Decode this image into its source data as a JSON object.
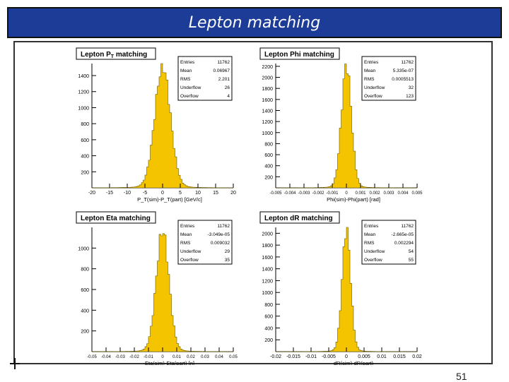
{
  "slide": {
    "title": "Lepton matching",
    "page_number": "51"
  },
  "colors": {
    "title_bg": "#1c3c98",
    "bar_fill": "#f5c400",
    "bar_stroke": "#6b5a00"
  },
  "chart_data": [
    {
      "type": "bar",
      "title": "Lepton P_T matching",
      "title_main": "Lepton P",
      "title_sub": "T",
      "title_tail": " matching",
      "xlabel": "P_T(sim)-P_T(part) [GeV/c]",
      "xticks": [
        "-20",
        "-15",
        "-10",
        "-5",
        "0",
        "5",
        "10",
        "15",
        "20"
      ],
      "yticks": [
        "200",
        "400",
        "600",
        "800",
        "1000",
        "1200",
        "1400"
      ],
      "xlim": [
        -20,
        20
      ],
      "ylim": [
        0,
        1550
      ],
      "mean": 0,
      "sigma": 2.2,
      "peak": 1520,
      "stats": [
        [
          "Entries",
          "11762"
        ],
        [
          "Mean",
          "0.06967"
        ],
        [
          "RMS",
          "2.201"
        ],
        [
          "Underflow",
          "26"
        ],
        [
          "Overflow",
          "4"
        ]
      ]
    },
    {
      "type": "bar",
      "title": "Lepton Phi matching",
      "xlabel": "Phi(sim)-Phi(part) [rad]",
      "xticks": [
        "-0.005",
        "-0.004",
        "-0.003",
        "-0.002",
        "-0.001",
        "0",
        "0.001",
        "0.002",
        "0.003",
        "0.004",
        "0.005"
      ],
      "xtick_labels_row": "-0.0050.0040.0030.0020.001 0 0.0010.0020.0030.0040.005",
      "yticks": [
        "200",
        "400",
        "600",
        "800",
        "1000",
        "1200",
        "1400",
        "1600",
        "1800",
        "2000",
        "2200"
      ],
      "xlim": [
        -0.005,
        0.005
      ],
      "ylim": [
        0,
        2250
      ],
      "mean": 0,
      "sigma": 0.00035,
      "peak": 2230,
      "stats": [
        [
          "Entries",
          "11762"
        ],
        [
          "Mean",
          "5.335e-07"
        ],
        [
          "RMS",
          "0.0005513"
        ],
        [
          "Underflow",
          "32"
        ],
        [
          "Overflow",
          "123"
        ]
      ]
    },
    {
      "type": "bar",
      "title": "Lepton Eta matching",
      "xlabel": "Eta(sim)-Eta(part) [η]",
      "xticks": [
        "-0.05",
        "-0.04",
        "-0.03",
        "-0.02",
        "-0.01",
        "0",
        "0.01",
        "0.02",
        "0.03",
        "0.04",
        "0.05"
      ],
      "yticks": [
        "200",
        "400",
        "600",
        "800",
        "1000"
      ],
      "xlim": [
        -0.05,
        0.05
      ],
      "ylim": [
        0,
        1200
      ],
      "mean": 0,
      "sigma": 0.0045,
      "peak": 1170,
      "stats": [
        [
          "Entries",
          "11762"
        ],
        [
          "Mean",
          "-3.049e-05"
        ],
        [
          "RMS",
          "0.009032"
        ],
        [
          "Underflow",
          "29"
        ],
        [
          "Overflow",
          "35"
        ]
      ]
    },
    {
      "type": "bar",
      "title": "Lepton dR matching",
      "xlabel": "dR(sim)-dR(part)",
      "xticks": [
        "-0.02",
        "-0.015",
        "-0.01",
        "-0.005",
        "0",
        "0.005",
        "0.01",
        "0.015",
        "0.02"
      ],
      "yticks": [
        "200",
        "400",
        "600",
        "800",
        "1000",
        "1200",
        "1400",
        "1600",
        "1800",
        "2000"
      ],
      "xlim": [
        -0.02,
        0.02
      ],
      "ylim": [
        0,
        2100
      ],
      "mean": 0,
      "sigma": 0.0012,
      "peak": 2080,
      "stats": [
        [
          "Entries",
          "11762"
        ],
        [
          "Mean",
          "-2.665e-05"
        ],
        [
          "RMS",
          "0.002294"
        ],
        [
          "Underflow",
          "54"
        ],
        [
          "Overflow",
          "55"
        ]
      ]
    }
  ]
}
